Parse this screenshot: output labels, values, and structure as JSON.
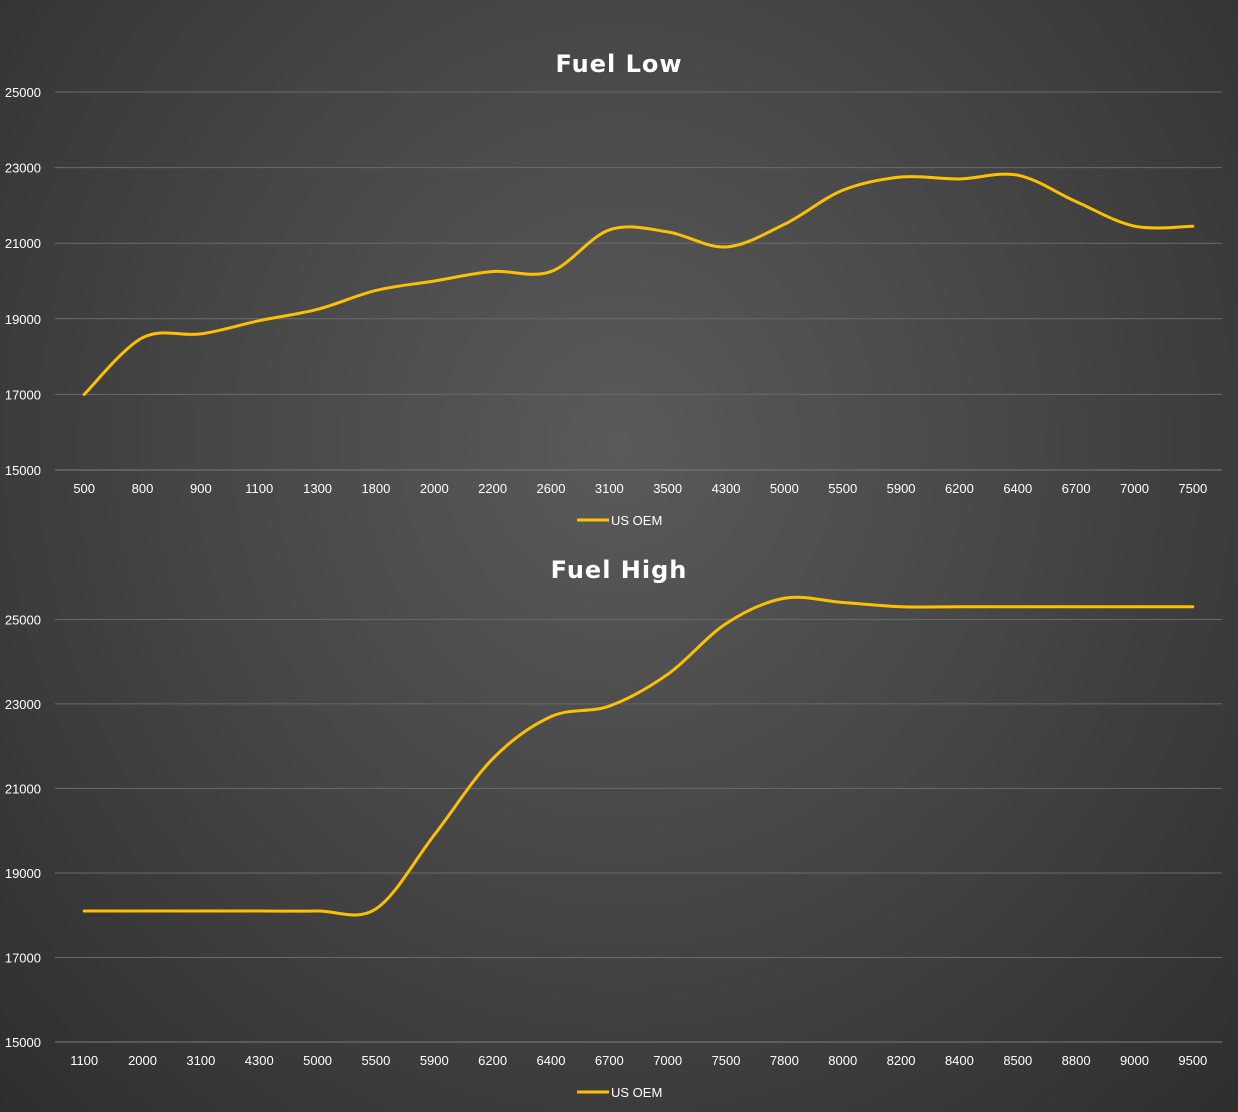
{
  "chart_data": [
    {
      "type": "line",
      "title": "Fuel Low",
      "categories": [
        "500",
        "800",
        "900",
        "1100",
        "1300",
        "1800",
        "2000",
        "2200",
        "2600",
        "3100",
        "3500",
        "4300",
        "5000",
        "5500",
        "5900",
        "6200",
        "6400",
        "6700",
        "7000",
        "7500"
      ],
      "series": [
        {
          "name": "US OEM",
          "color": "#FFC000",
          "values": [
            17000,
            18500,
            18600,
            18950,
            19250,
            19750,
            20000,
            20250,
            20250,
            21350,
            21300,
            20900,
            21500,
            22400,
            22750,
            22700,
            22800,
            22100,
            21450,
            21450
          ]
        }
      ],
      "ylim": [
        15000,
        25000
      ],
      "yticks": [
        15000,
        17000,
        19000,
        21000,
        23000,
        25000
      ],
      "grid": true,
      "legend": "bottom",
      "smooth": true
    },
    {
      "type": "line",
      "title": "Fuel High",
      "categories": [
        "1100",
        "2000",
        "3100",
        "4300",
        "5000",
        "5500",
        "5900",
        "6200",
        "6400",
        "6700",
        "7000",
        "7500",
        "7800",
        "8000",
        "8200",
        "8400",
        "8500",
        "8800",
        "9000",
        "9500"
      ],
      "series": [
        {
          "name": "US OEM",
          "color": "#FFC000",
          "values": [
            18100,
            18100,
            18100,
            18100,
            18100,
            18150,
            19900,
            21700,
            22700,
            22950,
            23700,
            24900,
            25500,
            25400,
            25300,
            25300,
            25300,
            25300,
            25300,
            25300
          ]
        }
      ],
      "ylim": [
        15000,
        26500
      ],
      "yticks": [
        15000,
        17000,
        19000,
        21000,
        23000,
        25000
      ],
      "grid": true,
      "legend": "bottom",
      "smooth": true
    }
  ]
}
